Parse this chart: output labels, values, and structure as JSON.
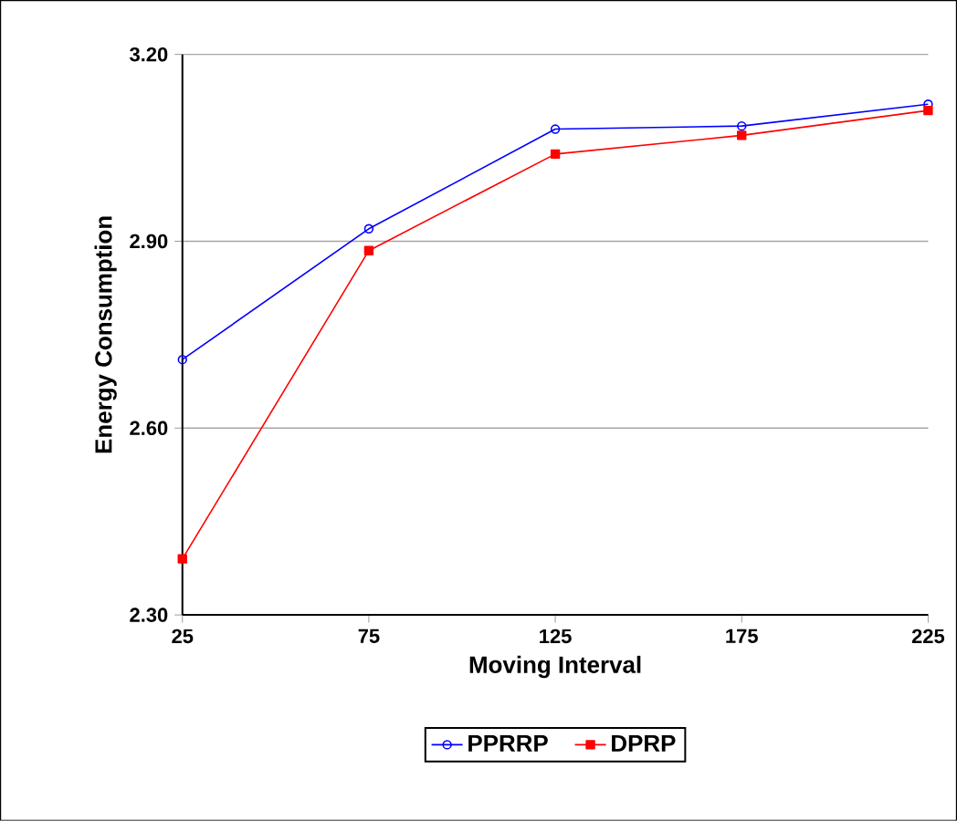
{
  "chart_data": {
    "type": "line",
    "xlabel": "Moving Interval",
    "ylabel": "Energy Consumption",
    "categories": [
      "25",
      "75",
      "125",
      "175",
      "225"
    ],
    "ylim": [
      2.3,
      3.2
    ],
    "yticks": [
      {
        "value": 2.3,
        "label": "2.30"
      },
      {
        "value": 2.6,
        "label": "2.60"
      },
      {
        "value": 2.9,
        "label": "2.90"
      },
      {
        "value": 3.2,
        "label": "3.20"
      }
    ],
    "grid": "y",
    "legend": "bottom",
    "series": [
      {
        "name": "PPRRP",
        "color": "#0000ff",
        "marker": "circle",
        "values": [
          2.71,
          2.92,
          3.08,
          3.085,
          3.12
        ]
      },
      {
        "name": "DPRP",
        "color": "#ff0000",
        "marker": "square",
        "values": [
          2.39,
          2.885,
          3.04,
          3.07,
          3.11
        ]
      }
    ]
  }
}
